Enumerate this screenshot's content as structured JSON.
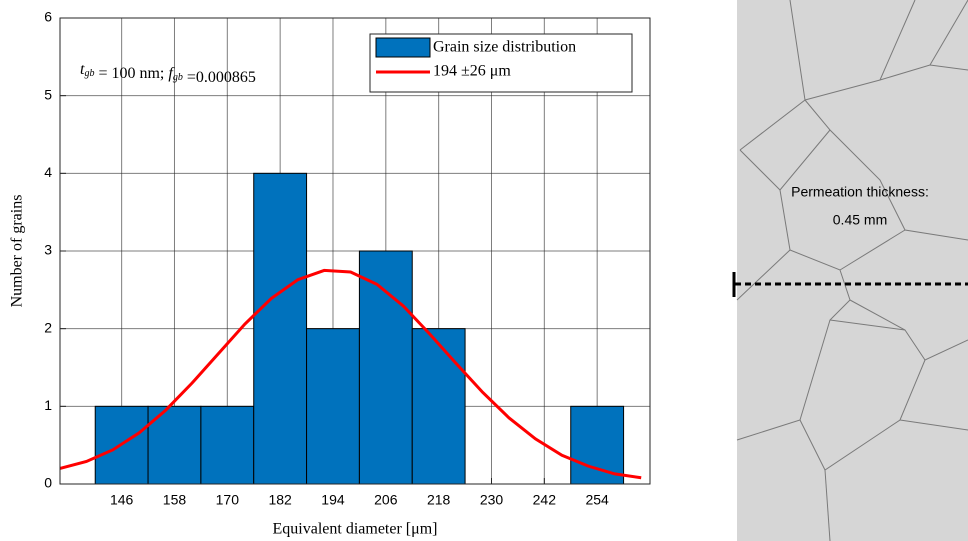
{
  "chart_data": {
    "type": "histogram",
    "name": "Grain size distribution",
    "color": "#0072bd",
    "bins": [
      140,
      152,
      164,
      176,
      188,
      200,
      212,
      224,
      236,
      248,
      260
    ],
    "values": [
      1,
      1,
      1,
      4,
      2,
      3,
      2,
      0,
      0,
      1
    ],
    "overlay": {
      "type": "line",
      "name": "194 ±26 μm",
      "color": "#ff0000",
      "x": [
        132,
        138,
        144,
        150,
        156,
        162,
        168,
        174,
        180,
        186,
        192,
        198,
        204,
        210,
        216,
        222,
        228,
        234,
        240,
        246,
        252,
        258,
        264
      ],
      "values": [
        0.2,
        0.29,
        0.44,
        0.66,
        0.95,
        1.3,
        1.68,
        2.06,
        2.39,
        2.63,
        2.75,
        2.73,
        2.57,
        2.29,
        1.93,
        1.55,
        1.18,
        0.85,
        0.58,
        0.37,
        0.23,
        0.13,
        0.08
      ]
    },
    "xlabel": "Equivalent diameter [μm]",
    "ylabel": "Number of grains",
    "xlim": [
      132,
      266
    ],
    "ylim": [
      0,
      6
    ],
    "xticks": [
      146,
      158,
      170,
      182,
      194,
      206,
      218,
      230,
      242,
      254
    ],
    "yticks": [
      0,
      1,
      2,
      3,
      4,
      5,
      6
    ],
    "grid": true,
    "legend": "upper right",
    "annotation": [
      {
        "text": "t",
        "sub": "gb"
      },
      {
        "text": " = 100 nm; "
      },
      {
        "text": "f",
        "sub": "gb"
      },
      {
        "text": " =0.000865"
      }
    ]
  },
  "inset": {
    "label": "Permeation thickness:",
    "value": "0.45 mm"
  }
}
